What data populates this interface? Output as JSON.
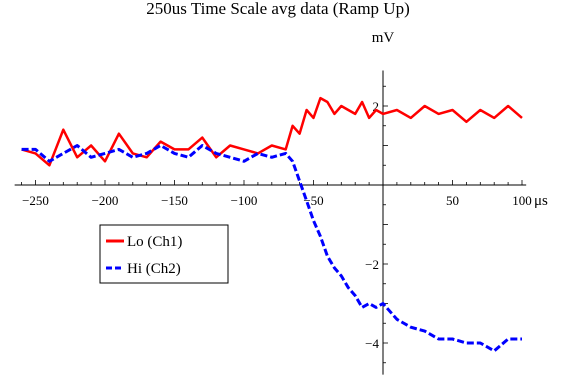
{
  "chart_data": {
    "type": "line",
    "title": "250us Time Scale avg data (Ramp Up)",
    "xlabel": "μs",
    "ylabel": "mV",
    "xlim": [
      -265,
      103
    ],
    "ylim": [
      -4.8,
      2.9
    ],
    "x_ticks": [
      -250,
      -200,
      -150,
      -100,
      -50,
      50,
      100
    ],
    "y_ticks": [
      -4,
      -2,
      2
    ],
    "legend_position": "lower-left",
    "colors": {
      "Lo (Ch1)": "#ff0000",
      "Hi (Ch2)": "#0000ff"
    },
    "series": [
      {
        "name": "Lo (Ch1)",
        "style": "solid",
        "x": [
          -260,
          -250,
          -240,
          -230,
          -220,
          -210,
          -200,
          -190,
          -180,
          -170,
          -160,
          -150,
          -140,
          -130,
          -120,
          -110,
          -100,
          -90,
          -80,
          -70,
          -65,
          -60,
          -55,
          -50,
          -45,
          -40,
          -35,
          -30,
          -25,
          -20,
          -15,
          -10,
          -5,
          0,
          10,
          20,
          30,
          40,
          50,
          60,
          70,
          80,
          90,
          100
        ],
        "y": [
          0.9,
          0.8,
          0.5,
          1.4,
          0.7,
          1.0,
          0.6,
          1.3,
          0.8,
          0.7,
          1.1,
          0.9,
          0.9,
          1.2,
          0.7,
          1.0,
          0.9,
          0.8,
          1.0,
          0.9,
          1.5,
          1.3,
          1.9,
          1.7,
          2.2,
          2.1,
          1.8,
          2.0,
          1.9,
          1.8,
          2.1,
          1.7,
          1.9,
          1.8,
          1.9,
          1.7,
          2.0,
          1.8,
          1.9,
          1.6,
          1.9,
          1.7,
          2.0,
          1.7
        ]
      },
      {
        "name": "Hi (Ch2)",
        "style": "dashed",
        "x": [
          -260,
          -250,
          -240,
          -230,
          -220,
          -210,
          -200,
          -190,
          -180,
          -170,
          -160,
          -150,
          -140,
          -130,
          -120,
          -110,
          -100,
          -90,
          -80,
          -70,
          -65,
          -60,
          -55,
          -50,
          -45,
          -40,
          -35,
          -30,
          -25,
          -20,
          -15,
          -10,
          -5,
          0,
          10,
          20,
          30,
          40,
          50,
          60,
          70,
          80,
          90,
          100
        ],
        "y": [
          0.9,
          0.9,
          0.6,
          0.8,
          1.0,
          0.7,
          0.8,
          0.9,
          0.7,
          0.8,
          1.0,
          0.8,
          0.7,
          1.0,
          0.8,
          0.7,
          0.6,
          0.8,
          0.7,
          0.8,
          0.6,
          0.1,
          -0.4,
          -0.9,
          -1.3,
          -1.8,
          -2.1,
          -2.3,
          -2.6,
          -2.8,
          -3.1,
          -3.0,
          -3.1,
          -3.0,
          -3.4,
          -3.6,
          -3.7,
          -3.9,
          -3.9,
          -4.0,
          -4.0,
          -4.2,
          -3.9,
          -3.9
        ]
      }
    ]
  }
}
